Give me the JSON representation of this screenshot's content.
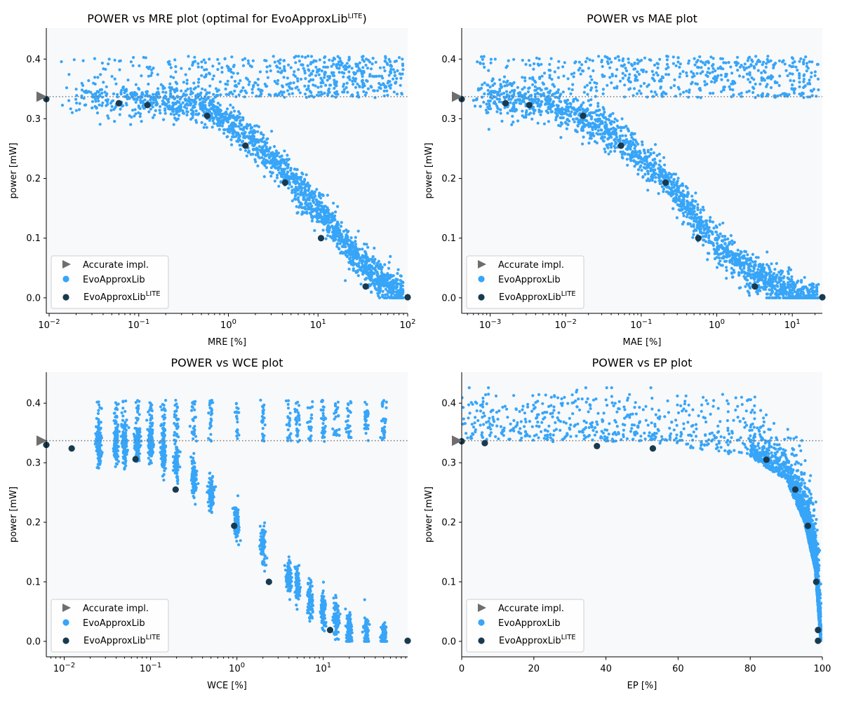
{
  "figure": {
    "lib_name": "EvoApproxLib",
    "lite_superscript": "LITE"
  },
  "colors": {
    "scatter": "#37a5f8",
    "lite": "#193a4e",
    "accurate": "#6e6e6e",
    "panel_bg": "#f8f9fb",
    "baseline": "#777777"
  },
  "legend": {
    "accurate": "Accurate impl.",
    "evo": "EvoApproxLib",
    "lite_base": "EvoApproxLib",
    "lite_sup": "LITE"
  },
  "chart_data": [
    {
      "type": "scatter",
      "title": "POWER vs MRE plot (optimal for EvoApproxLib",
      "title_sup": "LITE",
      "title_close": ")",
      "xlabel": "MRE [%]",
      "ylabel": "power [mW]",
      "xscale": "log",
      "xlim": [
        0.0093,
        100
      ],
      "ylim": [
        -0.026,
        0.452
      ],
      "xticks": [
        {
          "v": 0.01,
          "b": "10",
          "e": "−2"
        },
        {
          "v": 0.1,
          "b": "10",
          "e": "−1"
        },
        {
          "v": 1,
          "b": "10",
          "e": "0"
        },
        {
          "v": 10,
          "b": "10",
          "e": "1"
        },
        {
          "v": 100,
          "b": "10",
          "e": "2"
        }
      ],
      "yticks": [
        "0.0",
        "0.1",
        "0.2",
        "0.3",
        "0.4"
      ],
      "accurate_power": 0.337,
      "lite_points": [
        [
          0.0093,
          0.333
        ],
        [
          0.06,
          0.326
        ],
        [
          0.125,
          0.323
        ],
        [
          0.58,
          0.305
        ],
        [
          1.55,
          0.255
        ],
        [
          4.3,
          0.193
        ],
        [
          10.8,
          0.1
        ],
        [
          34,
          0.019
        ],
        [
          100,
          0.001
        ]
      ],
      "evo_cloud": {
        "description": "approx 2800 EvoApproxLib circuits",
        "power_range": [
          0.0,
          0.426
        ],
        "trend": [
          [
            0.01,
            0.335
          ],
          [
            0.1,
            0.33
          ],
          [
            0.6,
            0.32
          ],
          [
            2,
            0.26
          ],
          [
            5,
            0.2
          ],
          [
            10,
            0.15
          ],
          [
            20,
            0.09
          ],
          [
            40,
            0.04
          ],
          [
            100,
            0.002
          ]
        ]
      }
    },
    {
      "type": "scatter",
      "title": "POWER vs MAE plot",
      "xlabel": "MAE [%]",
      "ylabel": "power [mW]",
      "xscale": "log",
      "xlim": [
        0.00042,
        25
      ],
      "ylim": [
        -0.026,
        0.452
      ],
      "xticks": [
        {
          "v": 0.001,
          "b": "10",
          "e": "−3"
        },
        {
          "v": 0.01,
          "b": "10",
          "e": "−2"
        },
        {
          "v": 0.1,
          "b": "10",
          "e": "−1"
        },
        {
          "v": 1,
          "b": "10",
          "e": "0"
        },
        {
          "v": 10,
          "b": "10",
          "e": "1"
        }
      ],
      "yticks": [
        "0.0",
        "0.1",
        "0.2",
        "0.3",
        "0.4"
      ],
      "accurate_power": 0.337,
      "lite_points": [
        [
          0.00042,
          0.333
        ],
        [
          0.0016,
          0.326
        ],
        [
          0.0033,
          0.323
        ],
        [
          0.017,
          0.305
        ],
        [
          0.054,
          0.255
        ],
        [
          0.21,
          0.193
        ],
        [
          0.57,
          0.1
        ],
        [
          3.2,
          0.019
        ],
        [
          25,
          0.001
        ]
      ],
      "evo_cloud": {
        "description": "approx 2800 EvoApproxLib circuits",
        "power_range": [
          0.0,
          0.426
        ],
        "trend": [
          [
            0.0005,
            0.335
          ],
          [
            0.005,
            0.33
          ],
          [
            0.02,
            0.3
          ],
          [
            0.06,
            0.26
          ],
          [
            0.2,
            0.2
          ],
          [
            0.5,
            0.14
          ],
          [
            1,
            0.09
          ],
          [
            3,
            0.04
          ],
          [
            10,
            0.006
          ],
          [
            20,
            0.001
          ]
        ]
      }
    },
    {
      "type": "scatter",
      "title": "POWER vs WCE plot",
      "xlabel": "WCE [%]",
      "ylabel": "power [mW]",
      "xscale": "log",
      "xlim": [
        0.0062,
        95
      ],
      "ylim": [
        -0.026,
        0.452
      ],
      "xticks": [
        {
          "v": 0.01,
          "b": "10",
          "e": "−2"
        },
        {
          "v": 0.1,
          "b": "10",
          "e": "−1"
        },
        {
          "v": 1,
          "b": "10",
          "e": "0"
        },
        {
          "v": 10,
          "b": "10",
          "e": "1"
        }
      ],
      "yticks": [
        "0.0",
        "0.1",
        "0.2",
        "0.3",
        "0.4"
      ],
      "accurate_power": 0.337,
      "lite_points": [
        [
          0.0062,
          0.33
        ],
        [
          0.0122,
          0.324
        ],
        [
          0.067,
          0.306
        ],
        [
          0.195,
          0.255
        ],
        [
          0.93,
          0.194
        ],
        [
          2.35,
          0.1
        ],
        [
          12,
          0.019
        ],
        [
          95,
          0.001
        ]
      ],
      "evo_cloud": {
        "description": "approx 2800 EvoApproxLib circuits in vertical bands",
        "power_range": [
          0.0,
          0.426
        ],
        "trend": [
          [
            0.01,
            0.33
          ],
          [
            0.1,
            0.33
          ],
          [
            0.2,
            0.3
          ],
          [
            0.5,
            0.25
          ],
          [
            1,
            0.2
          ],
          [
            2,
            0.16
          ],
          [
            4,
            0.11
          ],
          [
            8,
            0.06
          ],
          [
            20,
            0.02
          ],
          [
            60,
            0.002
          ]
        ]
      }
    },
    {
      "type": "scatter",
      "title": "POWER vs EP plot",
      "xlabel": "EP [%]",
      "ylabel": "power [mW]",
      "xscale": "linear",
      "xlim": [
        0,
        100
      ],
      "ylim": [
        -0.026,
        0.452
      ],
      "xticks": [
        {
          "v": 0,
          "t": "0"
        },
        {
          "v": 20,
          "t": "20"
        },
        {
          "v": 40,
          "t": "40"
        },
        {
          "v": 60,
          "t": "60"
        },
        {
          "v": 80,
          "t": "80"
        },
        {
          "v": 100,
          "t": "100"
        }
      ],
      "yticks": [
        "0.0",
        "0.1",
        "0.2",
        "0.3",
        "0.4"
      ],
      "accurate_power": 0.337,
      "lite_points": [
        [
          0,
          0.336
        ],
        [
          6.4,
          0.333
        ],
        [
          37.5,
          0.328
        ],
        [
          53,
          0.324
        ],
        [
          84.5,
          0.305
        ],
        [
          92.5,
          0.255
        ],
        [
          96,
          0.194
        ],
        [
          98.3,
          0.1
        ],
        [
          98.8,
          0.019
        ],
        [
          98.8,
          0.001
        ]
      ],
      "evo_cloud": {
        "description": "approx 2800 EvoApproxLib circuits",
        "power_range": [
          0.0,
          0.426
        ],
        "trend": [
          [
            0,
            0.34
          ],
          [
            50,
            0.335
          ],
          [
            80,
            0.31
          ],
          [
            90,
            0.27
          ],
          [
            95,
            0.2
          ],
          [
            98,
            0.12
          ],
          [
            99.5,
            0.0
          ]
        ]
      }
    }
  ]
}
